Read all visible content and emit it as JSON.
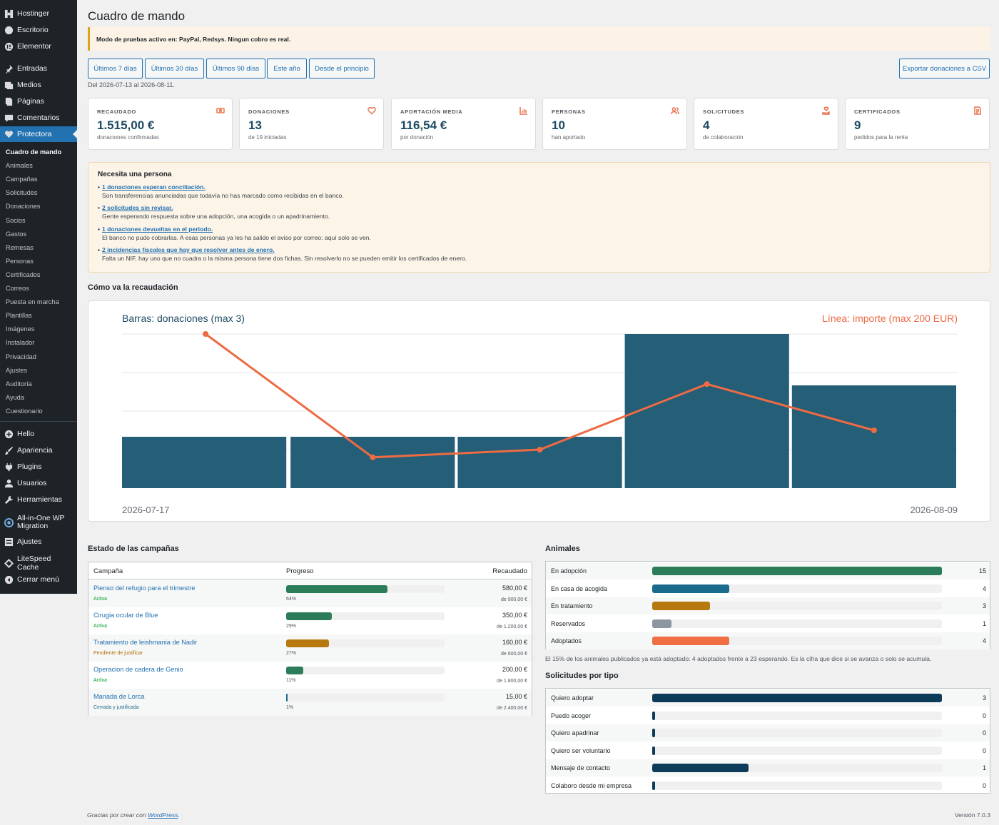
{
  "menu": {
    "top": [
      {
        "label": "Hostinger",
        "icon": "hostinger-icon"
      },
      {
        "label": "Escritorio",
        "icon": "dashboard-icon"
      },
      {
        "label": "Elementor",
        "icon": "elementor-icon"
      },
      {
        "label": "Entradas",
        "icon": "pin-icon"
      },
      {
        "label": "Medios",
        "icon": "media-icon"
      },
      {
        "label": "Páginas",
        "icon": "pages-icon"
      },
      {
        "label": "Comentarios",
        "icon": "comments-icon"
      },
      {
        "label": "Protectora",
        "icon": "heart-icon"
      }
    ],
    "sub": [
      "Cuadro de mando",
      "Animales",
      "Campañas",
      "Solicitudes",
      "Donaciones",
      "Socios",
      "Gastos",
      "Remesas",
      "Personas",
      "Certificados",
      "Correos",
      "Puesta en marcha",
      "Plantillas",
      "Imágenes",
      "Instalador",
      "Privacidad",
      "Ajustes",
      "Auditoría",
      "Ayuda",
      "Cuestionario"
    ],
    "bottom": [
      {
        "label": "Hello",
        "icon": "plus-circle-icon"
      },
      {
        "label": "Apariencia",
        "icon": "brush-icon"
      },
      {
        "label": "Plugins",
        "icon": "plugin-icon"
      },
      {
        "label": "Usuarios",
        "icon": "user-icon"
      },
      {
        "label": "Herramientas",
        "icon": "wrench-icon"
      },
      {
        "label": "All-in-One WP Migration",
        "icon": "migration-icon"
      },
      {
        "label": "Ajustes",
        "icon": "settings-icon"
      },
      {
        "label": "LiteSpeed Cache",
        "icon": "litespeed-icon"
      },
      {
        "label": "Cerrar menú",
        "icon": "collapse-icon"
      }
    ]
  },
  "page": {
    "title": "Cuadro de mando",
    "notice": "Modo de pruebas activo en: PayPal, Redsys. Ningun cobro es real.",
    "periods": [
      "Últimos 7 días",
      "Últimos 30 días",
      "Últimos 90 días",
      "Este año",
      "Desde el principio"
    ],
    "export_label": "Exportar donaciones a CSV",
    "range": "Del 2026-07-13 al 2026-08-11."
  },
  "cards": [
    {
      "label": "RECAUDADO",
      "value": "1.515,00 €",
      "sub": "donaciones confirmadas",
      "icon": "money-icon"
    },
    {
      "label": "DONACIONES",
      "value": "13",
      "sub": "de 19 iniciadas",
      "icon": "heart-icon"
    },
    {
      "label": "APORTACIÓN MEDIA",
      "value": "116,54 €",
      "sub": "por donación",
      "icon": "bar-chart-icon"
    },
    {
      "label": "PERSONAS",
      "value": "10",
      "sub": "han aportado",
      "icon": "people-icon"
    },
    {
      "label": "SOLICITUDES",
      "value": "4",
      "sub": "de colaboración",
      "icon": "hand-heart-icon"
    },
    {
      "label": "CERTIFICADOS",
      "value": "9",
      "sub": "pedidos para la renta",
      "icon": "document-icon"
    }
  ],
  "attention": {
    "title": "Necesita una persona",
    "items": [
      {
        "link": "1 donaciones esperan conciliación.",
        "desc": "Son transferencias anunciadas que todavía no has marcado como recibidas en el banco."
      },
      {
        "link": "2 solicitudes sin revisar.",
        "desc": "Gente esperando respuesta sobre una adopción, una acogida o un apadrinamiento."
      },
      {
        "link": "1 donaciones devueltas en el periodo.",
        "desc": "El banco no pudo cobrarlas. A esas personas ya les ha salido el aviso por correo: aquí solo se ven."
      },
      {
        "link": "2 incidencias fiscales que hay que resolver antes de enero.",
        "desc": "Falta un NIF, hay uno que no cuadra o la misma persona tiene dos fichas. Sin resolverlo no se pueden emitir los certificados de enero."
      }
    ]
  },
  "chart_section_title": "Cómo va la recaudación",
  "chart_data": {
    "type": "bar",
    "title_left": "Barras: donaciones (max 3)",
    "title_right": "Línea: importe (max 200 EUR)",
    "x_start_label": "2026-07-17",
    "x_end_label": "2026-08-09",
    "bar_max": 3,
    "line_max": 200,
    "series": [
      {
        "name": "donaciones",
        "kind": "bar",
        "values": [
          1,
          1,
          1,
          3,
          2
        ]
      },
      {
        "name": "importe",
        "kind": "line",
        "values": [
          200,
          40,
          50,
          135,
          75
        ]
      }
    ],
    "colors": {
      "bar": "#245e77",
      "line": "#ee6b44"
    },
    "gridlines": 4
  },
  "campaigns": {
    "title": "Estado de las campañas",
    "headers": {
      "name": "Campaña",
      "progress": "Progreso",
      "raised": "Recaudado"
    },
    "rows": [
      {
        "name": "Pienso del refugio para el trimestre",
        "status": "Activa",
        "status_color": "#00a32a",
        "pct_label": "64%",
        "pct": 0.64,
        "color": "#2a7d58",
        "amount": "580,00 €",
        "goal": "de 900,00 €"
      },
      {
        "name": "Cirugia ocular de Blue",
        "status": "Activa",
        "status_color": "#00a32a",
        "pct_label": "29%",
        "pct": 0.29,
        "color": "#2a7d58",
        "amount": "350,00 €",
        "goal": "de 1.200,00 €"
      },
      {
        "name": "Tratamiento de leishmania de Nadir",
        "status": "Pendiente de justificar",
        "status_color": "#b06e00",
        "pct_label": "27%",
        "pct": 0.27,
        "color": "#b7790f",
        "amount": "160,00 €",
        "goal": "de 600,00 €"
      },
      {
        "name": "Operacion de cadera de Genio",
        "status": "Activa",
        "status_color": "#00a32a",
        "pct_label": "11%",
        "pct": 0.11,
        "color": "#2a7d58",
        "amount": "200,00 €",
        "goal": "de 1.800,00 €"
      },
      {
        "name": "Manada de Lorca",
        "status": "Cerrada y justificada",
        "status_color": "#1e6b8a",
        "pct_label": "1%",
        "pct": 0.01,
        "color": "#1e6b8a",
        "amount": "15,00 €",
        "goal": "de 2.400,00 €"
      }
    ]
  },
  "animals": {
    "title": "Animales",
    "rows": [
      {
        "label": "En adopción",
        "value": 15,
        "frac": 1.0,
        "color": "#2a7d58"
      },
      {
        "label": "En casa de acogida",
        "value": 4,
        "frac": 0.267,
        "color": "#1a6b8e"
      },
      {
        "label": "En tratamiento",
        "value": 3,
        "frac": 0.2,
        "color": "#b7790f"
      },
      {
        "label": "Reservados",
        "value": 1,
        "frac": 0.067,
        "color": "#8c95a0"
      },
      {
        "label": "Adoptados",
        "value": 4,
        "frac": 0.267,
        "color": "#f06e43"
      }
    ],
    "note": "El 15% de los animales publicados ya está adoptado: 4 adoptados frente a 23 esperando. Es la cifra que dice si se avanza o solo se acumula."
  },
  "requests": {
    "title": "Solicitudes por tipo",
    "color": "#0d3b5a",
    "rows": [
      {
        "label": "Quiero adoptar",
        "value": 3,
        "frac": 1.0
      },
      {
        "label": "Puedo acoger",
        "value": 0,
        "frac": 0
      },
      {
        "label": "Quiero apadrinar",
        "value": 0,
        "frac": 0
      },
      {
        "label": "Quiero ser voluntario",
        "value": 0,
        "frac": 0
      },
      {
        "label": "Mensaje de contacto",
        "value": 1,
        "frac": 0.333
      },
      {
        "label": "Colaboro desde mi empresa",
        "value": 0,
        "frac": 0
      }
    ]
  },
  "footer": {
    "thanks": "Gracias por crear con ",
    "link": "WordPress",
    "dot": ".",
    "version": "Versión 7.0.3"
  }
}
